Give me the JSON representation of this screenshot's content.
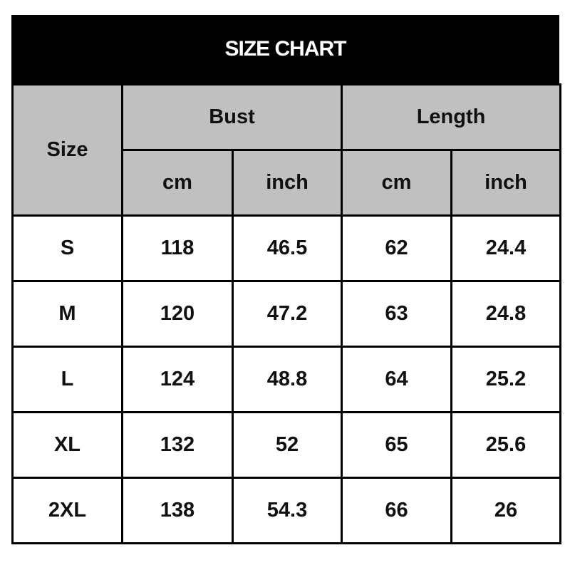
{
  "title": "SIZE CHART",
  "chart_data": {
    "type": "table",
    "title": "SIZE CHART",
    "header": {
      "size": "Size",
      "groups": [
        "Bust",
        "Length"
      ],
      "units": [
        "cm",
        "inch",
        "cm",
        "inch"
      ]
    },
    "rows": [
      [
        "S",
        "118",
        "46.5",
        "62",
        "24.4"
      ],
      [
        "M",
        "120",
        "47.2",
        "63",
        "24.8"
      ],
      [
        "L",
        "124",
        "48.8",
        "64",
        "25.2"
      ],
      [
        "XL",
        "132",
        "52",
        "65",
        "25.6"
      ],
      [
        "2XL",
        "138",
        "54.3",
        "66",
        "26"
      ]
    ]
  },
  "colors": {
    "title_bg": "#000000",
    "header_bg": "#c0c0c0",
    "cell_bg": "#ffffff"
  }
}
